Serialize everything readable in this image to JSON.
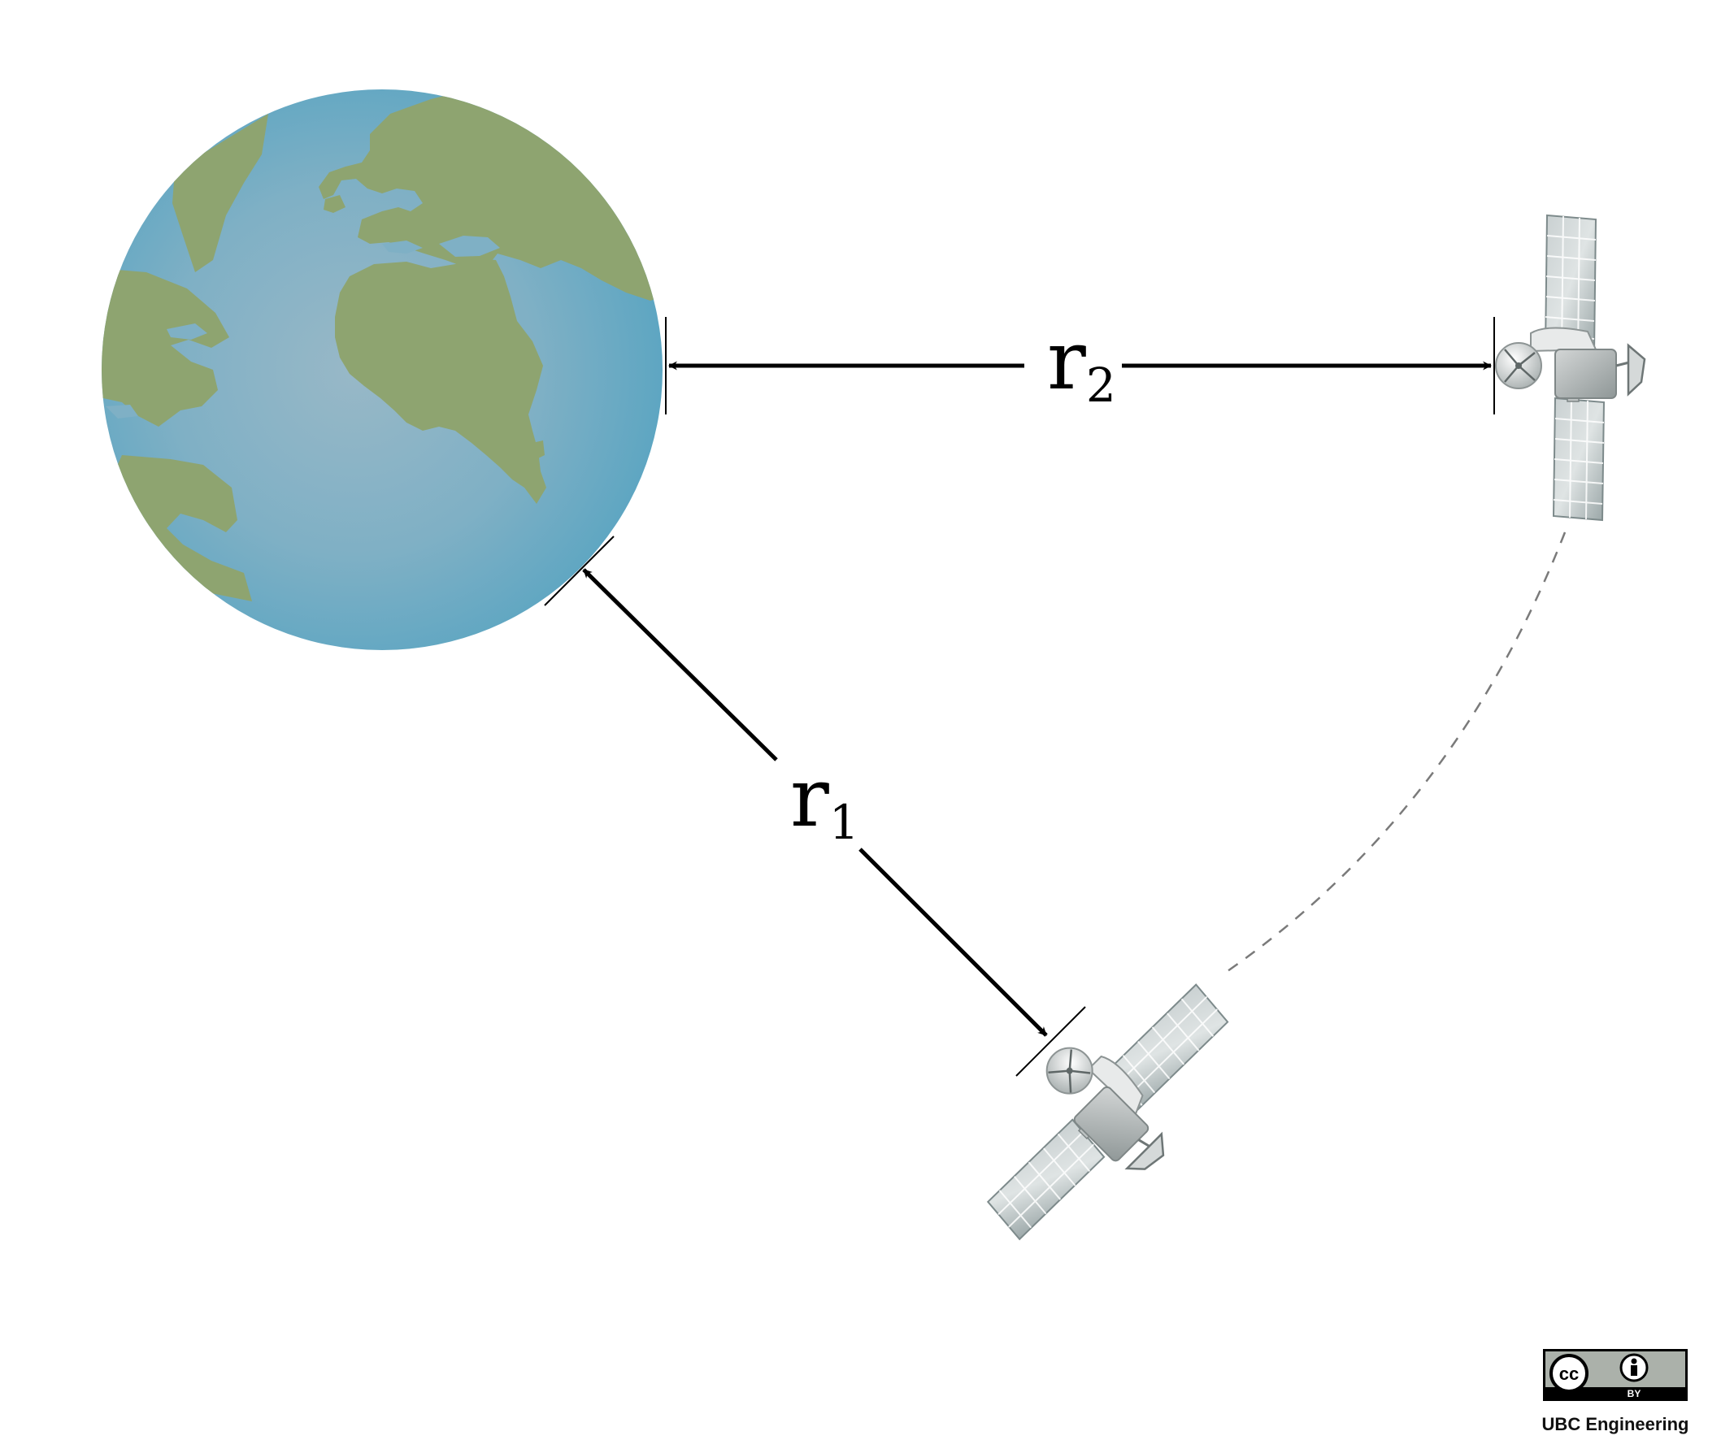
{
  "labels": {
    "r1": {
      "main": "r",
      "sub": "1"
    },
    "r2": {
      "main": "r",
      "sub": "2"
    }
  },
  "license": {
    "cc": "cc",
    "by": "BY",
    "credit": "UBC Engineering"
  },
  "colors": {
    "ocean": "#6aa9c3",
    "ocean_center": "#96b7c6",
    "land": "#8ea470",
    "arrow": "#000000",
    "panel": "#a9b5b6",
    "body": "#b4b8b8"
  },
  "icons": [
    "earth-icon",
    "satellite-icon",
    "cc-icon",
    "by-person-icon"
  ]
}
